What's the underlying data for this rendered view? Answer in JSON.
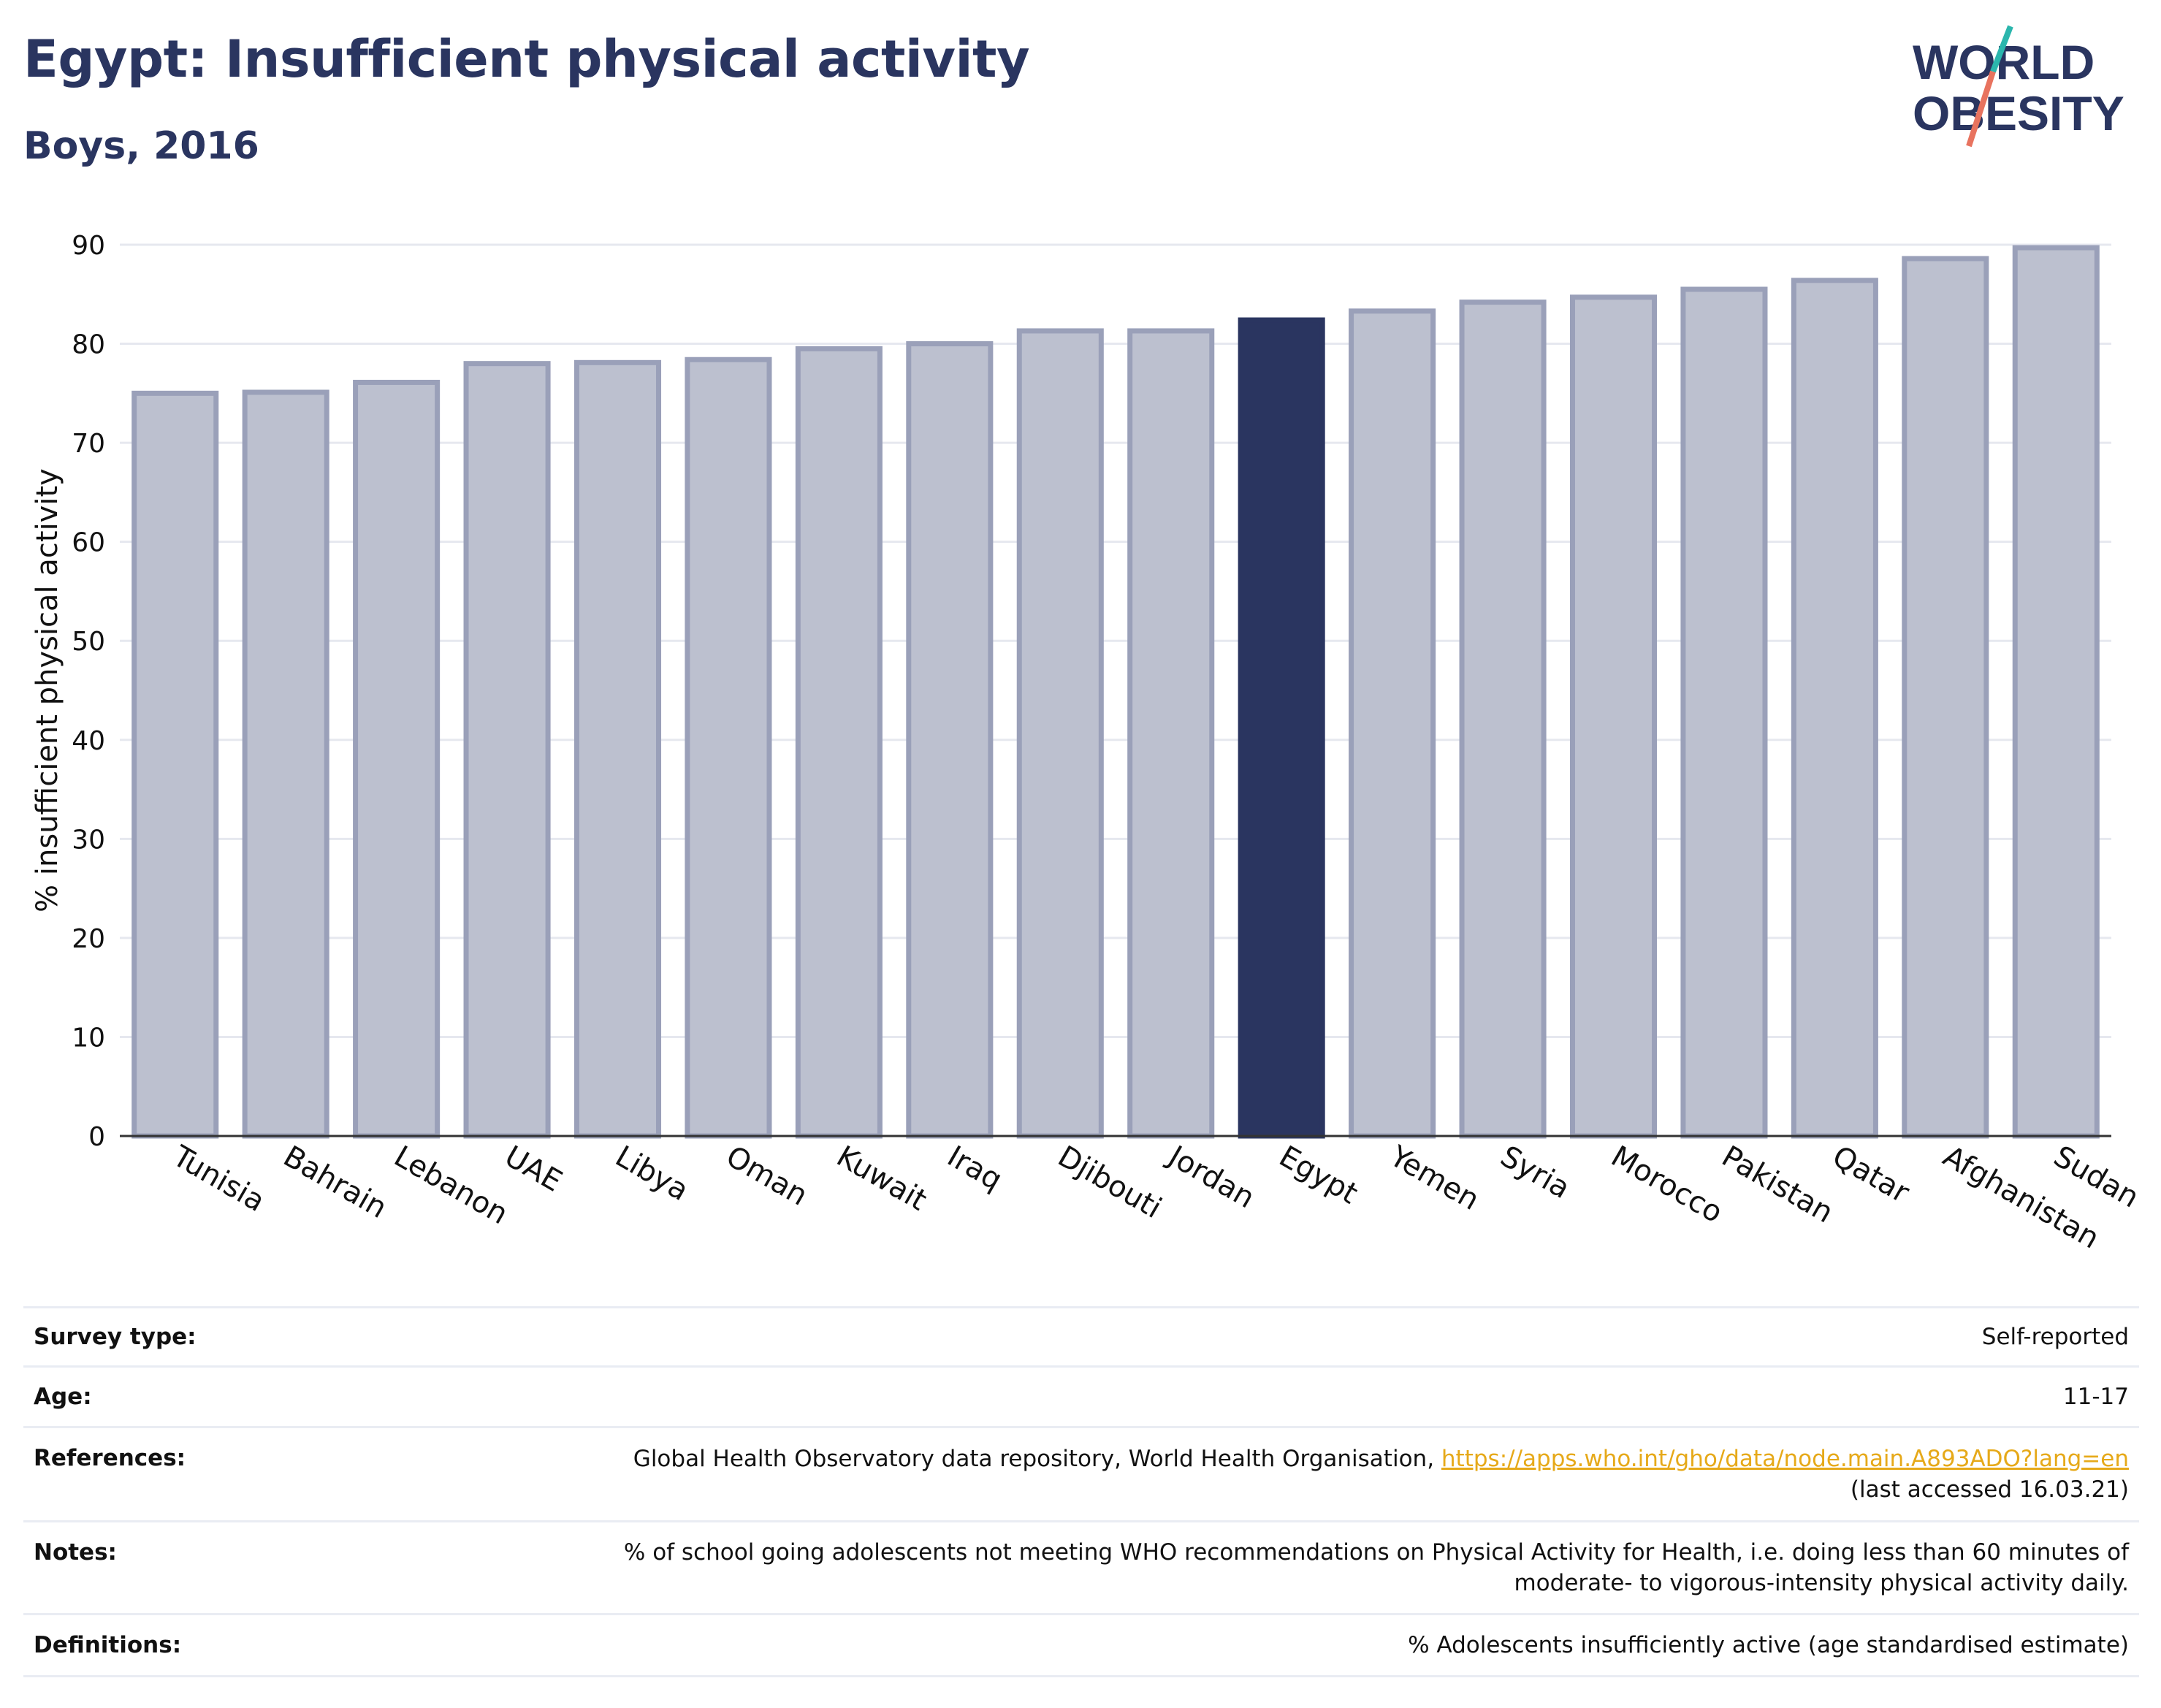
{
  "header": {
    "title": "Egypt: Insufficient physical activity",
    "subtitle": "Boys, 2016"
  },
  "logo": {
    "line1": "WORLD",
    "line2": "OBESITY",
    "slash_top_color": "#2bb6ad",
    "slash_bottom_color": "#e8735f"
  },
  "colors": {
    "highlight": "#2a3560",
    "bar_fill": "#bcc0cf",
    "bar_stroke": "#9aa0b9",
    "text": "#2a3560"
  },
  "chart_data": {
    "type": "bar",
    "title": "Egypt: Insufficient physical activity",
    "subtitle": "Boys, 2016",
    "ylabel": "% insufficient physical activity",
    "xlabel": "",
    "ylim": [
      0,
      90
    ],
    "yticks": [
      0,
      10,
      20,
      30,
      40,
      50,
      60,
      70,
      80,
      90
    ],
    "grid": true,
    "categories": [
      "Tunisia",
      "Bahrain",
      "Lebanon",
      "UAE",
      "Libya",
      "Oman",
      "Kuwait",
      "Iraq",
      "Djibouti",
      "Jordan",
      "Egypt",
      "Yemen",
      "Syria",
      "Morocco",
      "Pakistan",
      "Qatar",
      "Afghanistan",
      "Sudan"
    ],
    "values": [
      75.0,
      75.1,
      76.1,
      78.0,
      78.1,
      78.4,
      79.5,
      80.0,
      81.3,
      81.3,
      82.4,
      83.3,
      84.2,
      84.7,
      85.5,
      86.4,
      88.6,
      89.7
    ],
    "highlight": "Egypt"
  },
  "meta": [
    {
      "label": "Survey type:",
      "value": "Self-reported"
    },
    {
      "label": "Age:",
      "value": "11-17"
    },
    {
      "label": "References:",
      "value": "Global Health Observatory data repository, World Health Organisation, ",
      "link": "https://apps.who.int/gho/data/node.main.A893ADO?lang=en",
      "value2": "(last accessed 16.03.21)"
    },
    {
      "label": "Notes:",
      "value": "% of school going adolescents not meeting WHO recommendations on Physical Activity for Health, i.e. doing less than 60 minutes of",
      "value2": "moderate- to vigorous-intensity physical activity daily."
    },
    {
      "label": "Definitions:",
      "value": "% Adolescents insufficiently active (age standardised estimate)"
    }
  ]
}
